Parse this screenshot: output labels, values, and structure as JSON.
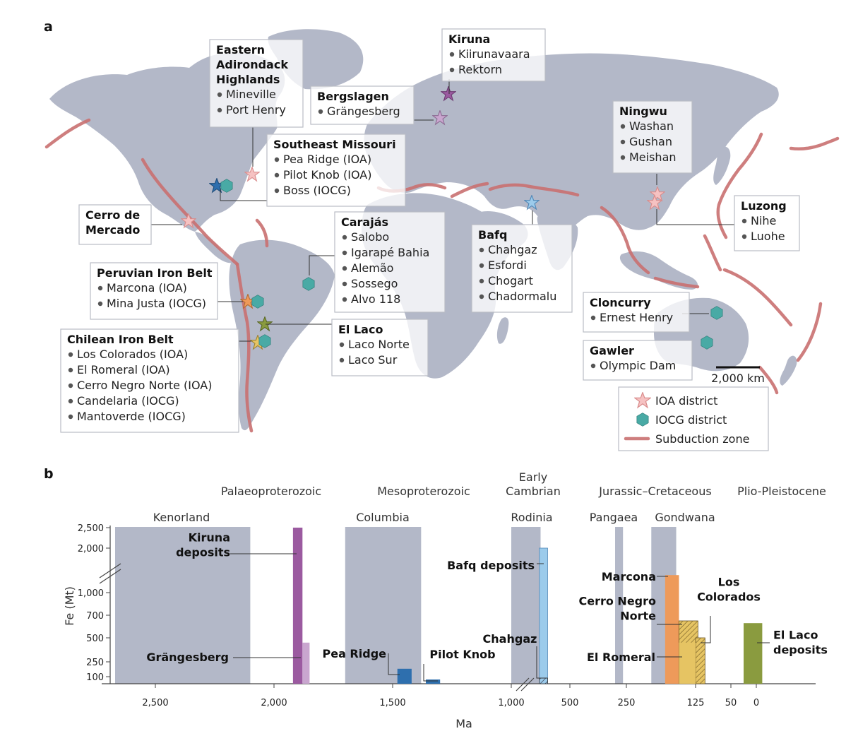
{
  "panel_a": {
    "letter": "a",
    "districts": [
      {
        "id": "adirondack",
        "title_lines": [
          "Eastern",
          "Adirondack",
          "Highlands"
        ],
        "items": [
          "Mineville",
          "Port Henry"
        ],
        "type": "IOA"
      },
      {
        "id": "bergslagen",
        "title_lines": [
          "Bergslagen"
        ],
        "items": [
          "Grängesberg"
        ],
        "type": "IOA"
      },
      {
        "id": "kiruna",
        "title_lines": [
          "Kiruna"
        ],
        "items": [
          "Kiirunavaara",
          "Rektorn"
        ],
        "type": "IOA"
      },
      {
        "id": "semissouri",
        "title_lines": [
          "Southeast Missouri"
        ],
        "items": [
          "Pea Ridge (IOA)",
          "Pilot Knob (IOA)",
          "Boss (IOCG)"
        ],
        "type": "mixed"
      },
      {
        "id": "ningwu",
        "title_lines": [
          "Ningwu"
        ],
        "items": [
          "Washan",
          "Gushan",
          "Meishan"
        ],
        "type": "IOA"
      },
      {
        "id": "luzong",
        "title_lines": [
          "Luzong"
        ],
        "items": [
          "Nihe",
          "Luohe"
        ],
        "type": "IOA"
      },
      {
        "id": "cerro",
        "title_lines": [
          "Cerro de",
          "Mercado"
        ],
        "items": [],
        "type": "IOA"
      },
      {
        "id": "carajas",
        "title_lines": [
          "Carajás"
        ],
        "items": [
          "Salobo",
          "Igarapé Bahia",
          "Alemão",
          "Sossego",
          "Alvo 118"
        ],
        "type": "IOCG"
      },
      {
        "id": "bafq",
        "title_lines": [
          "Bafq"
        ],
        "items": [
          "Chahgaz",
          "Esfordi",
          "Chogart",
          "Chadormalu"
        ],
        "type": "IOA"
      },
      {
        "id": "peru",
        "title_lines": [
          "Peruvian Iron Belt"
        ],
        "items": [
          "Marcona (IOA)",
          "Mina Justa (IOCG)"
        ],
        "type": "mixed"
      },
      {
        "id": "cloncurry",
        "title_lines": [
          "Cloncurry"
        ],
        "items": [
          "Ernest Henry"
        ],
        "type": "IOCG"
      },
      {
        "id": "ellaco",
        "title_lines": [
          "El Laco"
        ],
        "items": [
          "Laco Norte",
          "Laco Sur"
        ],
        "type": "IOA"
      },
      {
        "id": "gawler",
        "title_lines": [
          "Gawler"
        ],
        "items": [
          "Olympic Dam"
        ],
        "type": "IOCG"
      },
      {
        "id": "chile",
        "title_lines": [
          "Chilean Iron Belt"
        ],
        "items": [
          "Los Colorados (IOA)",
          "El Romeral (IOA)",
          "Cerro Negro Norte (IOA)",
          "Candelaria (IOCG)",
          "Mantoverde (IOCG)"
        ],
        "type": "mixed"
      }
    ],
    "scale_bar": "2,000 km",
    "legend": {
      "ioa": "IOA district",
      "iocg": "IOCG district",
      "subduction": "Subduction zone"
    },
    "colors": {
      "land": "#b3b8c8",
      "subduction": "#c97070",
      "ioa_star": "#f6c2c2",
      "iocg_hex": "#49aaa5"
    }
  },
  "panel_b": {
    "letter": "b",
    "chart_data": {
      "type": "bar",
      "xlabel": "Ma",
      "ylabel": "Fe (Mt)",
      "x_direction": "reversed",
      "x_ticks": [
        "2,500",
        "2,000",
        "1,500",
        "1,000",
        "500",
        "250",
        "125",
        "50",
        "0"
      ],
      "y_ticks": [
        "100",
        "250",
        "500",
        "700",
        "1,000",
        "2,000",
        "2,500"
      ],
      "supercontinents": [
        "Kenorland",
        "Columbia",
        "Rodinia",
        "Pangaea",
        "Gondwana"
      ],
      "eras": [
        "Palaeoproterozoic",
        "Mesoproterozoic",
        "Early",
        "Cambrian",
        "Jurassic–Cretaceous",
        "Plio-Pleistocene"
      ],
      "bars": [
        {
          "label_lines": [
            "Kiruna",
            "deposits"
          ],
          "fe_mt": 2500,
          "color": "#9b5aa0"
        },
        {
          "label_lines": [
            "Grängesberg"
          ],
          "fe_mt": 450,
          "color": "#c9a6cf"
        },
        {
          "label_lines": [
            "Pea Ridge"
          ],
          "fe_mt": 180,
          "color": "#2e6fae"
        },
        {
          "label_lines": [
            "Pilot Knob"
          ],
          "fe_mt": 60,
          "color": "#2e6fae"
        },
        {
          "label_lines": [
            "Bafq deposits"
          ],
          "fe_mt": 2000,
          "color": "#9ccbeb"
        },
        {
          "label_lines": [
            "Chahgaz"
          ],
          "fe_mt": 80,
          "color": "#9ccbeb"
        },
        {
          "label_lines": [
            "Marcona"
          ],
          "fe_mt": 1400,
          "color": "#ee9a5a"
        },
        {
          "label_lines": [
            "Cerro Negro",
            "Norte"
          ],
          "fe_mt": 650,
          "color": "#e6c463"
        },
        {
          "label_lines": [
            "Los",
            "Colorados"
          ],
          "fe_mt": 500,
          "color": "#e6c463"
        },
        {
          "label_lines": [
            "El Romeral"
          ],
          "fe_mt": 450,
          "color": "#e6c463"
        },
        {
          "label_lines": [
            "El Laco",
            "deposits"
          ],
          "fe_mt": 630,
          "color": "#8a9b3f"
        }
      ]
    }
  }
}
